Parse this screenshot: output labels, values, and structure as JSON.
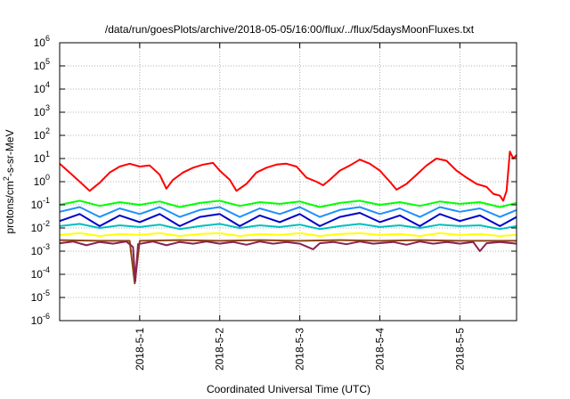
{
  "chart_data": {
    "type": "line",
    "title": "/data/run/goesPlots/archive/2018-05-05/16:00/flux/../flux/5daysMoonFluxes.txt",
    "xlabel": "Coordinated Universal Time (UTC)",
    "ylabel": "protons/cm²-s-sr-MeV",
    "ylabel_parts": [
      "protons/cm",
      "2",
      "-s-sr-MeV"
    ],
    "y_scale": "log",
    "ylim": [
      1e-06,
      1000000.0
    ],
    "xlim": [
      "2018-04-30T00:00",
      "2018-05-05T17:00"
    ],
    "grid": true,
    "x_ticks": [
      {
        "x": "2018-05-01T00:00",
        "label": "2018-5-1"
      },
      {
        "x": "2018-05-02T00:00",
        "label": "2018-5-2"
      },
      {
        "x": "2018-05-03T00:00",
        "label": "2018-5-3"
      },
      {
        "x": "2018-05-04T00:00",
        "label": "2018-5-4"
      },
      {
        "x": "2018-05-05T00:00",
        "label": "2018-5-5"
      }
    ],
    "y_ticks": [
      {
        "value": 1000000.0,
        "mantissa": "10",
        "exponent": "6"
      },
      {
        "value": 100000.0,
        "mantissa": "10",
        "exponent": "5"
      },
      {
        "value": 10000.0,
        "mantissa": "10",
        "exponent": "4"
      },
      {
        "value": 1000.0,
        "mantissa": "10",
        "exponent": "3"
      },
      {
        "value": 100.0,
        "mantissa": "10",
        "exponent": "2"
      },
      {
        "value": 10.0,
        "mantissa": "10",
        "exponent": "1"
      },
      {
        "value": 1.0,
        "mantissa": "10",
        "exponent": "0"
      },
      {
        "value": 0.1,
        "mantissa": "10",
        "exponent": "-1"
      },
      {
        "value": 0.01,
        "mantissa": "10",
        "exponent": "-2"
      },
      {
        "value": 0.001,
        "mantissa": "10",
        "exponent": "-3"
      },
      {
        "value": 0.0001,
        "mantissa": "10",
        "exponent": "-4"
      },
      {
        "value": 1e-05,
        "mantissa": "10",
        "exponent": "-5"
      },
      {
        "value": 1e-06,
        "mantissa": "10",
        "exponent": "-6"
      }
    ],
    "series": [
      {
        "color": "#ff0000",
        "points": [
          [
            "2018-04-30T00:00",
            6
          ],
          [
            "2018-04-30T03:00",
            2.5
          ],
          [
            "2018-04-30T06:00",
            1.0
          ],
          [
            "2018-04-30T09:00",
            0.4
          ],
          [
            "2018-04-30T12:00",
            0.9
          ],
          [
            "2018-04-30T15:00",
            2.5
          ],
          [
            "2018-04-30T18:00",
            4.5
          ],
          [
            "2018-04-30T21:00",
            6.0
          ],
          [
            "2018-05-01T00:00",
            4.5
          ],
          [
            "2018-05-01T03:00",
            5.0
          ],
          [
            "2018-05-01T06:00",
            2.0
          ],
          [
            "2018-05-01T08:00",
            0.5
          ],
          [
            "2018-05-01T10:00",
            1.2
          ],
          [
            "2018-05-01T13:00",
            2.5
          ],
          [
            "2018-05-01T16:00",
            4.0
          ],
          [
            "2018-05-01T19:00",
            5.5
          ],
          [
            "2018-05-01T22:00",
            6.5
          ],
          [
            "2018-05-02T00:00",
            3.0
          ],
          [
            "2018-05-02T03:00",
            1.2
          ],
          [
            "2018-05-02T05:00",
            0.4
          ],
          [
            "2018-05-02T08:00",
            0.8
          ],
          [
            "2018-05-02T11:00",
            2.5
          ],
          [
            "2018-05-02T14:00",
            4.0
          ],
          [
            "2018-05-02T17:00",
            5.5
          ],
          [
            "2018-05-02T20:00",
            6.0
          ],
          [
            "2018-05-02T23:00",
            4.5
          ],
          [
            "2018-05-03T02:00",
            1.5
          ],
          [
            "2018-05-03T05:00",
            1.0
          ],
          [
            "2018-05-03T07:00",
            0.7
          ],
          [
            "2018-05-03T09:00",
            1.2
          ],
          [
            "2018-05-03T12:00",
            3.0
          ],
          [
            "2018-05-03T15:00",
            5.0
          ],
          [
            "2018-05-03T18:00",
            9.0
          ],
          [
            "2018-05-03T21:00",
            6.0
          ],
          [
            "2018-05-04T00:00",
            3.0
          ],
          [
            "2018-05-04T03:00",
            1.0
          ],
          [
            "2018-05-04T05:00",
            0.45
          ],
          [
            "2018-05-04T08:00",
            0.8
          ],
          [
            "2018-05-04T11:00",
            2.0
          ],
          [
            "2018-05-04T14:00",
            5.0
          ],
          [
            "2018-05-04T17:00",
            10.0
          ],
          [
            "2018-05-04T20:00",
            8.0
          ],
          [
            "2018-05-04T23:00",
            3.0
          ],
          [
            "2018-05-05T02:00",
            1.5
          ],
          [
            "2018-05-05T05:00",
            0.8
          ],
          [
            "2018-05-05T08:00",
            0.6
          ],
          [
            "2018-05-05T10:00",
            0.3
          ],
          [
            "2018-05-05T12:00",
            0.25
          ],
          [
            "2018-05-05T13:00",
            0.15
          ],
          [
            "2018-05-05T14:00",
            0.4
          ],
          [
            "2018-05-05T15:00",
            20
          ],
          [
            "2018-05-05T16:00",
            10
          ],
          [
            "2018-05-05T17:00",
            14
          ]
        ]
      },
      {
        "color": "#00ff00",
        "points": [
          [
            "2018-04-30T00:00",
            0.1
          ],
          [
            "2018-04-30T06:00",
            0.15
          ],
          [
            "2018-04-30T12:00",
            0.09
          ],
          [
            "2018-04-30T18:00",
            0.13
          ],
          [
            "2018-05-01T00:00",
            0.1
          ],
          [
            "2018-05-01T06:00",
            0.14
          ],
          [
            "2018-05-01T12:00",
            0.08
          ],
          [
            "2018-05-01T18:00",
            0.12
          ],
          [
            "2018-05-02T00:00",
            0.15
          ],
          [
            "2018-05-02T06:00",
            0.09
          ],
          [
            "2018-05-02T12:00",
            0.13
          ],
          [
            "2018-05-02T18:00",
            0.11
          ],
          [
            "2018-05-03T00:00",
            0.14
          ],
          [
            "2018-05-03T06:00",
            0.08
          ],
          [
            "2018-05-03T12:00",
            0.12
          ],
          [
            "2018-05-03T18:00",
            0.15
          ],
          [
            "2018-05-04T00:00",
            0.1
          ],
          [
            "2018-05-04T06:00",
            0.13
          ],
          [
            "2018-05-04T12:00",
            0.09
          ],
          [
            "2018-05-04T18:00",
            0.14
          ],
          [
            "2018-05-05T00:00",
            0.11
          ],
          [
            "2018-05-05T06:00",
            0.13
          ],
          [
            "2018-05-05T12:00",
            0.08
          ],
          [
            "2018-05-05T17:00",
            0.12
          ]
        ]
      },
      {
        "color": "#1e90ff",
        "points": [
          [
            "2018-04-30T00:00",
            0.05
          ],
          [
            "2018-04-30T06:00",
            0.08
          ],
          [
            "2018-04-30T12:00",
            0.03
          ],
          [
            "2018-04-30T18:00",
            0.07
          ],
          [
            "2018-05-01T00:00",
            0.04
          ],
          [
            "2018-05-01T06:00",
            0.08
          ],
          [
            "2018-05-01T12:00",
            0.03
          ],
          [
            "2018-05-01T18:00",
            0.06
          ],
          [
            "2018-05-02T00:00",
            0.08
          ],
          [
            "2018-05-02T06:00",
            0.03
          ],
          [
            "2018-05-02T12:00",
            0.07
          ],
          [
            "2018-05-02T18:00",
            0.04
          ],
          [
            "2018-05-03T00:00",
            0.08
          ],
          [
            "2018-05-03T06:00",
            0.03
          ],
          [
            "2018-05-03T12:00",
            0.06
          ],
          [
            "2018-05-03T18:00",
            0.08
          ],
          [
            "2018-05-04T00:00",
            0.04
          ],
          [
            "2018-05-04T06:00",
            0.07
          ],
          [
            "2018-05-04T12:00",
            0.03
          ],
          [
            "2018-05-04T18:00",
            0.08
          ],
          [
            "2018-05-05T00:00",
            0.05
          ],
          [
            "2018-05-05T06:00",
            0.07
          ],
          [
            "2018-05-05T12:00",
            0.03
          ],
          [
            "2018-05-05T17:00",
            0.06
          ]
        ]
      },
      {
        "color": "#0000cd",
        "points": [
          [
            "2018-04-30T00:00",
            0.02
          ],
          [
            "2018-04-30T06:00",
            0.04
          ],
          [
            "2018-04-30T12:00",
            0.012
          ],
          [
            "2018-04-30T18:00",
            0.035
          ],
          [
            "2018-05-01T00:00",
            0.018
          ],
          [
            "2018-05-01T06:00",
            0.04
          ],
          [
            "2018-05-01T12:00",
            0.012
          ],
          [
            "2018-05-01T18:00",
            0.03
          ],
          [
            "2018-05-02T00:00",
            0.04
          ],
          [
            "2018-05-02T06:00",
            0.012
          ],
          [
            "2018-05-02T12:00",
            0.035
          ],
          [
            "2018-05-02T18:00",
            0.018
          ],
          [
            "2018-05-03T00:00",
            0.04
          ],
          [
            "2018-05-03T06:00",
            0.012
          ],
          [
            "2018-05-03T12:00",
            0.03
          ],
          [
            "2018-05-03T18:00",
            0.045
          ],
          [
            "2018-05-04T00:00",
            0.018
          ],
          [
            "2018-05-04T06:00",
            0.035
          ],
          [
            "2018-05-04T12:00",
            0.012
          ],
          [
            "2018-05-04T18:00",
            0.04
          ],
          [
            "2018-05-05T00:00",
            0.02
          ],
          [
            "2018-05-05T06:00",
            0.035
          ],
          [
            "2018-05-05T12:00",
            0.012
          ],
          [
            "2018-05-05T17:00",
            0.03
          ]
        ]
      },
      {
        "color": "#00bfbf",
        "points": [
          [
            "2018-04-30T00:00",
            0.012
          ],
          [
            "2018-04-30T06:00",
            0.015
          ],
          [
            "2018-04-30T12:00",
            0.01
          ],
          [
            "2018-04-30T18:00",
            0.013
          ],
          [
            "2018-05-01T00:00",
            0.011
          ],
          [
            "2018-05-01T06:00",
            0.014
          ],
          [
            "2018-05-01T12:00",
            0.009
          ],
          [
            "2018-05-01T18:00",
            0.012
          ],
          [
            "2018-05-02T00:00",
            0.015
          ],
          [
            "2018-05-02T06:00",
            0.01
          ],
          [
            "2018-05-02T12:00",
            0.013
          ],
          [
            "2018-05-02T18:00",
            0.011
          ],
          [
            "2018-05-03T00:00",
            0.014
          ],
          [
            "2018-05-03T06:00",
            0.009
          ],
          [
            "2018-05-03T12:00",
            0.012
          ],
          [
            "2018-05-03T18:00",
            0.015
          ],
          [
            "2018-05-04T00:00",
            0.011
          ],
          [
            "2018-05-04T06:00",
            0.013
          ],
          [
            "2018-05-04T12:00",
            0.01
          ],
          [
            "2018-05-04T18:00",
            0.014
          ],
          [
            "2018-05-05T00:00",
            0.012
          ],
          [
            "2018-05-05T06:00",
            0.013
          ],
          [
            "2018-05-05T12:00",
            0.009
          ],
          [
            "2018-05-05T17:00",
            0.012
          ]
        ]
      },
      {
        "color": "#ffff00",
        "points": [
          [
            "2018-04-30T00:00",
            0.005
          ],
          [
            "2018-04-30T06:00",
            0.006
          ],
          [
            "2018-04-30T12:00",
            0.0045
          ],
          [
            "2018-04-30T18:00",
            0.0055
          ],
          [
            "2018-05-01T00:00",
            0.005
          ],
          [
            "2018-05-01T06:00",
            0.006
          ],
          [
            "2018-05-01T12:00",
            0.0045
          ],
          [
            "2018-05-01T18:00",
            0.0055
          ],
          [
            "2018-05-02T00:00",
            0.006
          ],
          [
            "2018-05-02T06:00",
            0.0045
          ],
          [
            "2018-05-02T12:00",
            0.0055
          ],
          [
            "2018-05-02T18:00",
            0.005
          ],
          [
            "2018-05-03T00:00",
            0.006
          ],
          [
            "2018-05-03T06:00",
            0.0045
          ],
          [
            "2018-05-03T12:00",
            0.0055
          ],
          [
            "2018-05-03T18:00",
            0.006
          ],
          [
            "2018-05-04T00:00",
            0.005
          ],
          [
            "2018-05-04T06:00",
            0.0055
          ],
          [
            "2018-05-04T12:00",
            0.0045
          ],
          [
            "2018-05-04T18:00",
            0.006
          ],
          [
            "2018-05-05T00:00",
            0.005
          ],
          [
            "2018-05-05T06:00",
            0.0055
          ],
          [
            "2018-05-05T12:00",
            0.0045
          ],
          [
            "2018-05-05T17:00",
            0.005
          ]
        ]
      },
      {
        "color": "#8b4513",
        "points": [
          [
            "2018-04-30T00:00",
            0.003
          ],
          [
            "2018-04-30T12:00",
            0.0028
          ],
          [
            "2018-04-30T21:00",
            0.0028
          ],
          [
            "2018-04-30T22:30",
            4e-05
          ],
          [
            "2018-05-01T00:00",
            0.0028
          ],
          [
            "2018-05-01T12:00",
            0.003
          ],
          [
            "2018-05-02T00:00",
            0.0028
          ],
          [
            "2018-05-02T12:00",
            0.003
          ],
          [
            "2018-05-03T00:00",
            0.0028
          ],
          [
            "2018-05-03T12:00",
            0.003
          ],
          [
            "2018-05-04T00:00",
            0.0028
          ],
          [
            "2018-05-04T12:00",
            0.003
          ],
          [
            "2018-05-05T00:00",
            0.0028
          ],
          [
            "2018-05-05T17:00",
            0.0028
          ]
        ]
      },
      {
        "color": "#8b2252",
        "points": [
          [
            "2018-04-30T00:00",
            0.0022
          ],
          [
            "2018-04-30T04:00",
            0.0026
          ],
          [
            "2018-04-30T08:00",
            0.0018
          ],
          [
            "2018-04-30T12:00",
            0.0025
          ],
          [
            "2018-04-30T16:00",
            0.0021
          ],
          [
            "2018-04-30T20:00",
            0.0026
          ],
          [
            "2018-04-30T22:00",
            0.0015
          ],
          [
            "2018-04-30T22:40",
            5e-05
          ],
          [
            "2018-04-30T23:30",
            0.002
          ],
          [
            "2018-05-01T04:00",
            0.0026
          ],
          [
            "2018-05-01T08:00",
            0.0018
          ],
          [
            "2018-05-01T12:00",
            0.0025
          ],
          [
            "2018-05-01T16:00",
            0.0021
          ],
          [
            "2018-05-01T20:00",
            0.0026
          ],
          [
            "2018-05-02T00:00",
            0.0021
          ],
          [
            "2018-05-02T04:00",
            0.0025
          ],
          [
            "2018-05-02T08:00",
            0.0019
          ],
          [
            "2018-05-02T12:00",
            0.0026
          ],
          [
            "2018-05-02T16:00",
            0.0021
          ],
          [
            "2018-05-02T20:00",
            0.0025
          ],
          [
            "2018-05-03T00:00",
            0.0021
          ],
          [
            "2018-05-03T04:00",
            0.0012
          ],
          [
            "2018-05-03T06:00",
            0.0022
          ],
          [
            "2018-05-03T10:00",
            0.0025
          ],
          [
            "2018-05-03T14:00",
            0.002
          ],
          [
            "2018-05-03T18:00",
            0.0026
          ],
          [
            "2018-05-03T22:00",
            0.0021
          ],
          [
            "2018-05-04T04:00",
            0.0025
          ],
          [
            "2018-05-04T08:00",
            0.0019
          ],
          [
            "2018-05-04T12:00",
            0.0026
          ],
          [
            "2018-05-04T16:00",
            0.0021
          ],
          [
            "2018-05-04T20:00",
            0.0025
          ],
          [
            "2018-05-05T00:00",
            0.0021
          ],
          [
            "2018-05-05T04:00",
            0.0025
          ],
          [
            "2018-05-05T06:00",
            0.001
          ],
          [
            "2018-05-05T08:00",
            0.0022
          ],
          [
            "2018-05-05T12:00",
            0.0025
          ],
          [
            "2018-05-05T17:00",
            0.0021
          ]
        ]
      }
    ]
  }
}
